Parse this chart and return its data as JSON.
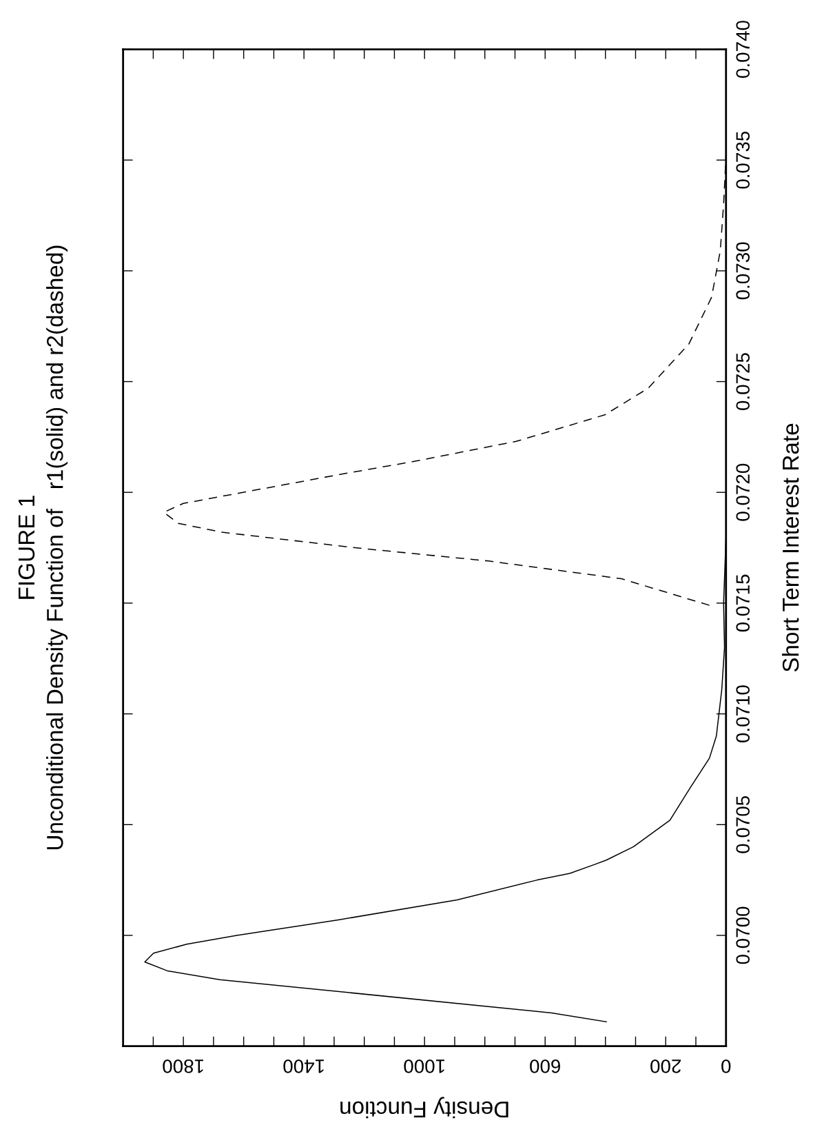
{
  "chart_data": {
    "type": "line",
    "title": "FIGURE 1",
    "subtitle": "Unconditional Density Function of   r1(solid) and r2(dashed)",
    "xlabel": "Density Function",
    "ylabel": "Short Term Interest Rate",
    "series": [
      {
        "color": "#000000",
        "line_style": "solid",
        "values": [
          0.06961,
          0.06965,
          0.0698,
          0.06984,
          0.06988,
          0.06992,
          0.06996,
          0.07,
          0.07007,
          0.07016,
          0.07025,
          0.07028,
          0.07032,
          0.07034,
          0.0704,
          0.07052,
          0.07067,
          0.0708,
          0.0709,
          0.07111,
          0.0713,
          0.0715,
          0.0718
        ],
        "x": [
          397,
          578,
          1679,
          1853,
          1928,
          1899,
          1789,
          1623,
          1286,
          892,
          626,
          518,
          436,
          397,
          307,
          186,
          117,
          55,
          32,
          14,
          5,
          8,
          0
        ]
      },
      {
        "color": "#000000",
        "line_style": "dashed",
        "values": [
          0.07149,
          0.07161,
          0.07169,
          0.07175,
          0.07182,
          0.07186,
          0.07191,
          0.07195,
          0.07208,
          0.07214,
          0.07223,
          0.07235,
          0.07247,
          0.07267,
          0.07288,
          0.07309,
          0.0733,
          0.07352
        ],
        "x": [
          55,
          347,
          788,
          1231,
          1672,
          1817,
          1865,
          1800,
          1284,
          1034,
          696,
          402,
          258,
          123,
          48,
          19,
          8,
          0
        ]
      }
    ],
    "ylim": [
      0.0695,
      0.074
    ],
    "yticks": [
      {
        "value": 0.07,
        "label": "0.0700"
      },
      {
        "value": 0.0705,
        "label": "0.0705"
      },
      {
        "value": 0.071,
        "label": "0.0710"
      },
      {
        "value": 0.0715,
        "label": "0.0715"
      },
      {
        "value": 0.072,
        "label": "0.0720"
      },
      {
        "value": 0.0725,
        "label": "0.0725"
      },
      {
        "value": 0.073,
        "label": "0.0730"
      },
      {
        "value": 0.0735,
        "label": "0.0735"
      },
      {
        "value": 0.074,
        "label": "0.0740"
      }
    ],
    "xlim": [
      2000,
      0
    ],
    "xticks": [
      0,
      {
        "value": 100,
        "label": null
      },
      200,
      {
        "value": 300,
        "label": null
      },
      {
        "value": 400,
        "label": null
      },
      {
        "value": 500,
        "label": null
      },
      600,
      {
        "value": 700,
        "label": null
      },
      {
        "value": 800,
        "label": null
      },
      {
        "value": 900,
        "label": null
      },
      1000,
      {
        "value": 1100,
        "label": null
      },
      {
        "value": 1200,
        "label": null
      },
      {
        "value": 1300,
        "label": null
      },
      1400,
      {
        "value": 1500,
        "label": null
      },
      {
        "value": 1600,
        "label": null
      },
      {
        "value": 1700,
        "label": null
      },
      1800,
      {
        "value": 1900,
        "label": null
      }
    ],
    "grid": false,
    "legend": false,
    "marker": "none"
  }
}
